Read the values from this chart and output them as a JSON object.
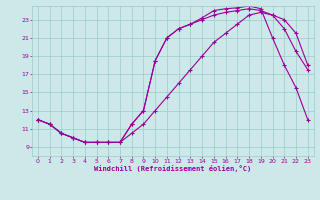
{
  "xlabel": "Windchill (Refroidissement éolien,°C)",
  "bg_color": "#cce8e8",
  "line_color": "#990099",
  "grid_color": "#99cccc",
  "xlim": [
    -0.5,
    23.5
  ],
  "ylim": [
    8.0,
    24.5
  ],
  "xticks": [
    0,
    1,
    2,
    3,
    4,
    5,
    6,
    7,
    8,
    9,
    10,
    11,
    12,
    13,
    14,
    15,
    16,
    17,
    18,
    19,
    20,
    21,
    22,
    23
  ],
  "yticks": [
    9,
    11,
    13,
    15,
    17,
    19,
    21,
    23
  ],
  "line1_x": [
    0,
    1,
    2,
    3,
    4,
    5,
    6,
    7,
    8,
    9,
    10,
    11,
    12,
    13,
    14,
    15,
    16,
    17,
    18,
    19,
    20,
    21,
    22,
    23
  ],
  "line1_y": [
    12.0,
    11.5,
    10.5,
    10.0,
    9.5,
    9.5,
    9.5,
    9.5,
    10.5,
    11.5,
    13.0,
    14.5,
    16.0,
    17.5,
    19.0,
    20.5,
    21.5,
    22.5,
    23.5,
    23.8,
    23.5,
    22.0,
    19.5,
    17.5
  ],
  "line2_x": [
    0,
    1,
    2,
    3,
    4,
    5,
    6,
    7,
    8,
    9,
    10,
    11,
    12,
    13,
    14,
    15,
    16,
    17,
    18,
    19,
    20,
    21,
    22,
    23
  ],
  "line2_y": [
    12.0,
    11.5,
    10.5,
    10.0,
    9.5,
    9.5,
    9.5,
    9.5,
    11.5,
    13.0,
    18.5,
    21.0,
    22.0,
    22.5,
    23.0,
    23.5,
    23.8,
    24.0,
    24.2,
    24.0,
    23.5,
    23.0,
    21.5,
    18.0
  ],
  "line3_x": [
    0,
    1,
    2,
    3,
    4,
    5,
    6,
    7,
    8,
    9,
    10,
    11,
    12,
    13,
    14,
    15,
    16,
    17,
    18,
    19,
    20,
    21,
    22,
    23
  ],
  "line3_y": [
    12.0,
    11.5,
    10.5,
    10.0,
    9.5,
    9.5,
    9.5,
    9.5,
    11.5,
    13.0,
    18.5,
    21.0,
    22.0,
    22.5,
    23.2,
    24.0,
    24.2,
    24.3,
    24.5,
    24.2,
    21.0,
    18.0,
    15.5,
    12.0
  ]
}
